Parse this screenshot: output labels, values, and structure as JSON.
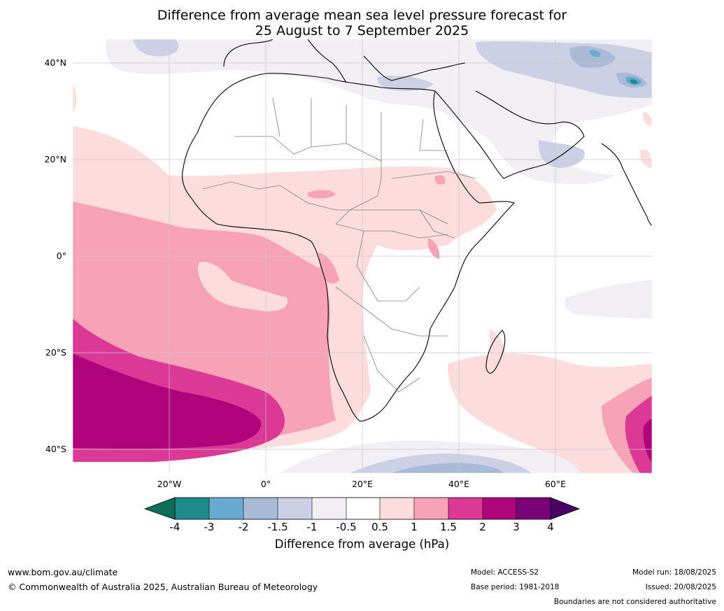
{
  "title": {
    "line1": "Difference from average mean sea level pressure forecast for",
    "line2": "25 August to 7 September 2025"
  },
  "map": {
    "lat_labels": [
      "40°N",
      "20°N",
      "0°",
      "20°S",
      "40°S"
    ],
    "lon_labels": [
      "20°W",
      "0°",
      "20°E",
      "40°E",
      "60°E"
    ],
    "colors": {
      "m4": "#0f6e5a",
      "m3": "#1e8c8c",
      "m2": "#6aaad0",
      "m15": "#a8bad6",
      "m1": "#ccd0e4",
      "m05": "#f1eef4",
      "zero": "#ffffff",
      "p05": "#fcdcdc",
      "p1": "#f8a2b8",
      "p15": "#dc3896",
      "p2": "#b0047c",
      "p3": "#7a0078",
      "p4": "#4a0064"
    }
  },
  "colorbar": {
    "ticks": [
      "-4",
      "-3",
      "-2",
      "-1.5",
      "-1",
      "-0.5",
      "0.5",
      "1",
      "1.5",
      "2",
      "3",
      "4"
    ],
    "label": "Difference from average (hPa)"
  },
  "footer": {
    "url": "www.bom.gov.au/climate",
    "copyright": "© Commonwealth of Australia 2025, Australian Bureau of Meteorology",
    "model": "Model: ACCESS-S2",
    "base_period": "Base period: 1981-2018",
    "model_run": "Model run: 18/08/2025",
    "issued": "Issued: 20/08/2025",
    "boundaries": "Boundaries are not considered authoritative"
  }
}
